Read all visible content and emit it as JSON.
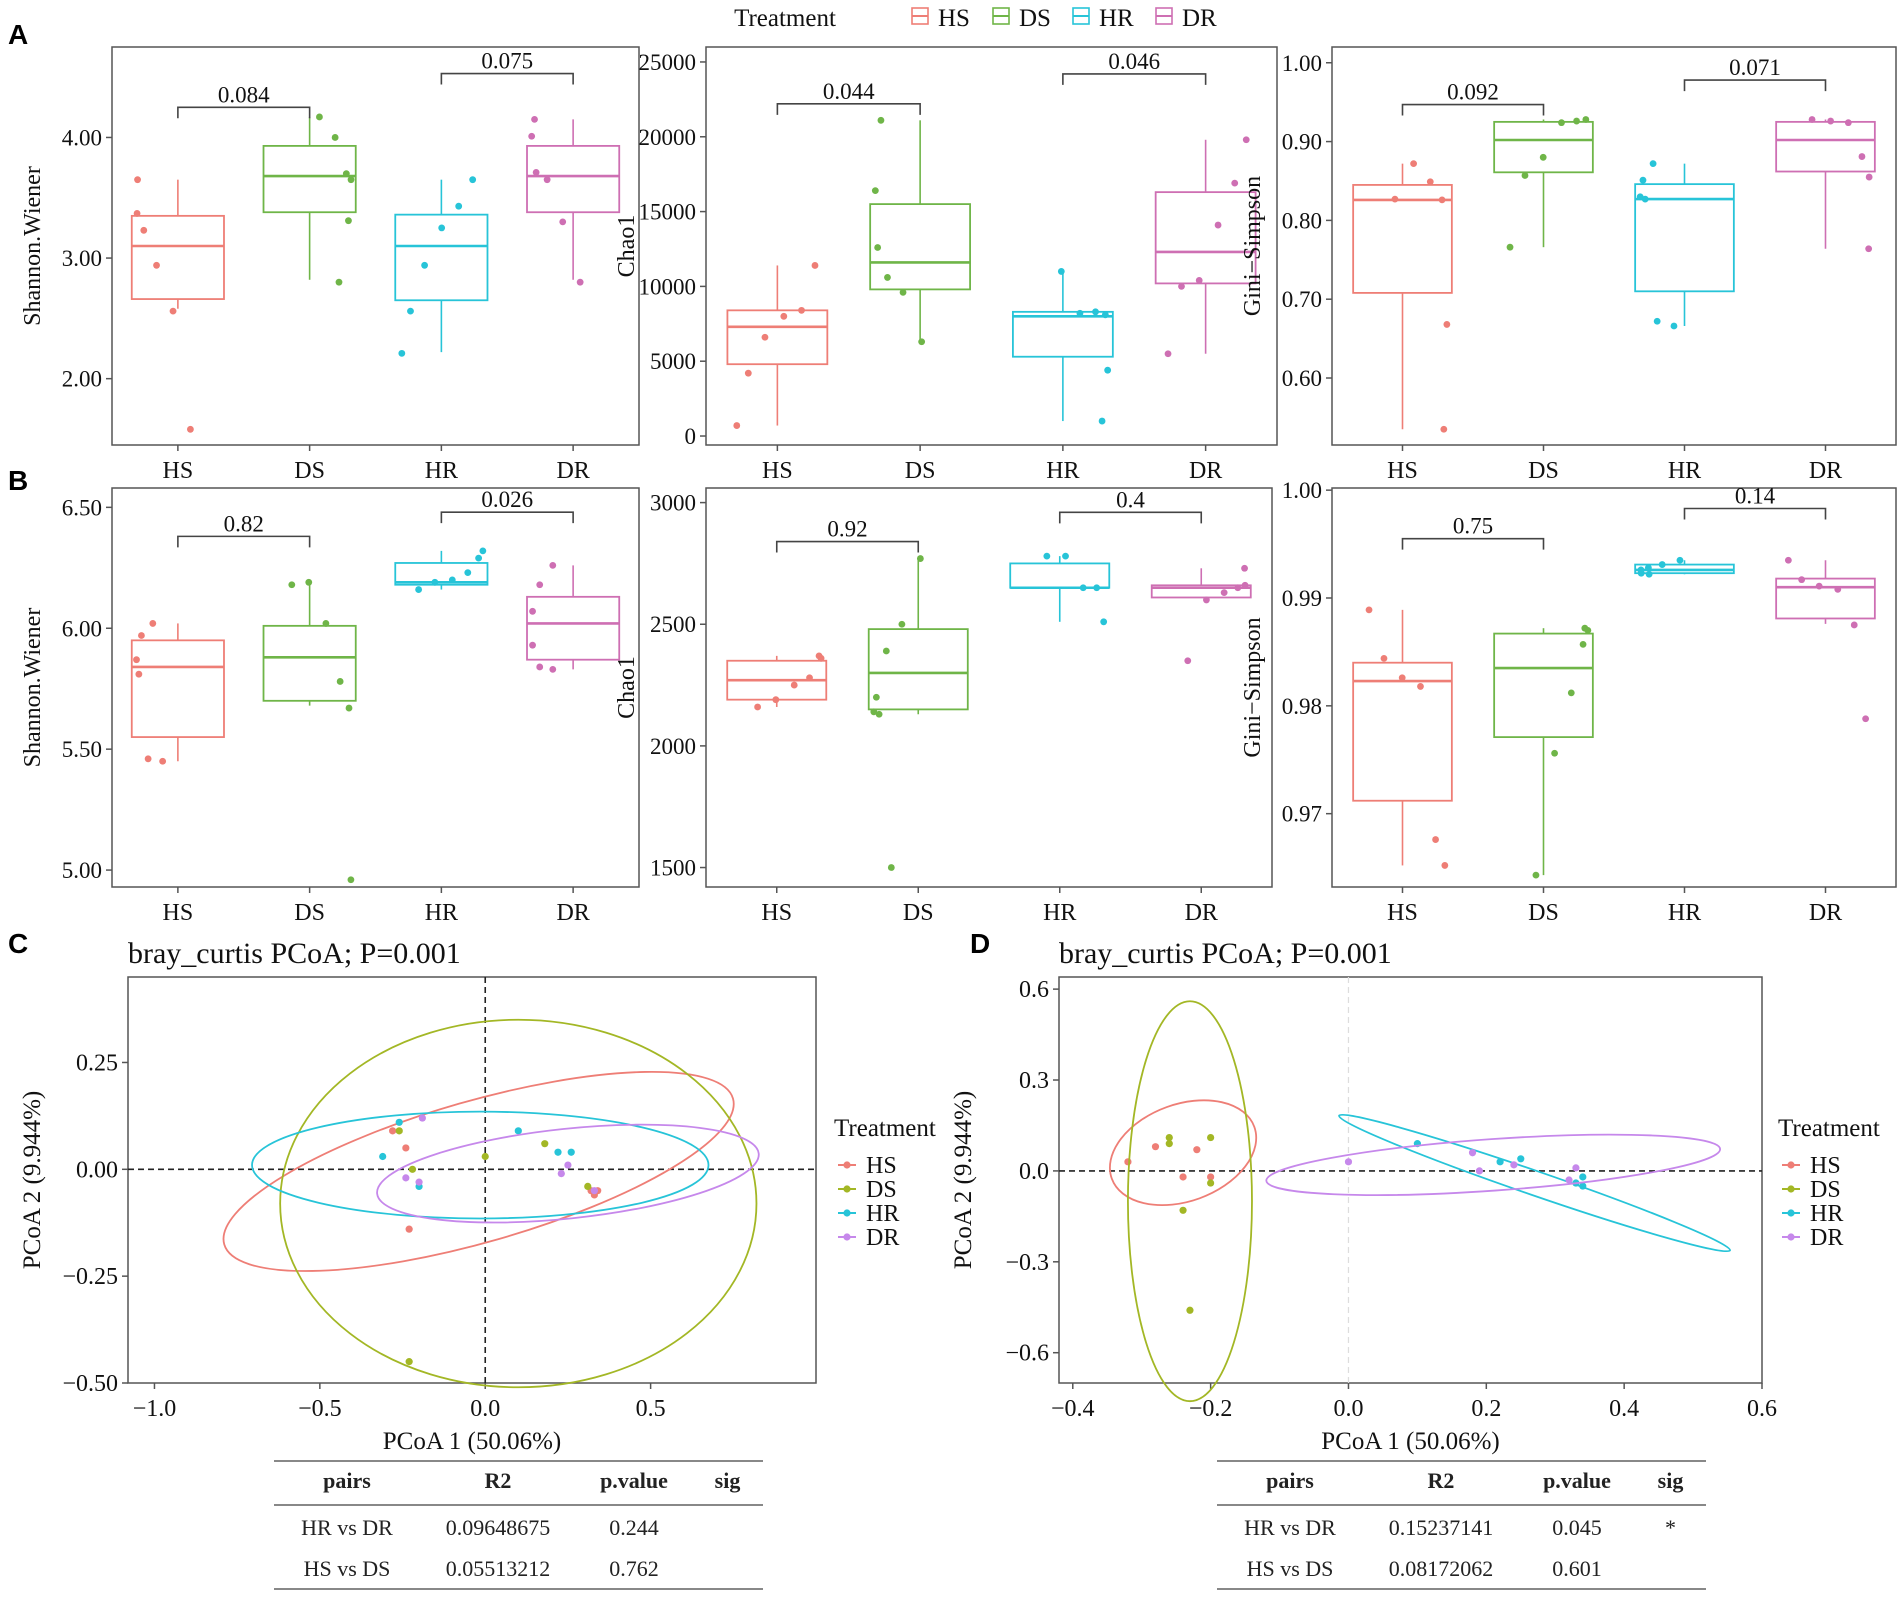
{
  "colors": {
    "HS": "#EE7E76",
    "DS": "#6FB548",
    "HR": "#27C4D8",
    "DR": "#CE6FB3",
    "DS_pcoa": "#A3B725",
    "DR_pcoa": "#C688EB",
    "frame": "#555555",
    "axis_text": "#111111"
  },
  "panel_labels": [
    "A",
    "B",
    "C",
    "D"
  ],
  "top_legend": {
    "title": "Treatment",
    "items": [
      "HS",
      "DS",
      "HR",
      "DR"
    ]
  },
  "chart_data": [
    {
      "id": "A1",
      "type": "boxplot",
      "ylabel": "Shannon.Wiener",
      "ylim": [
        1.45,
        4.75
      ],
      "yticks": [
        2.0,
        3.0,
        4.0
      ],
      "tick_labels": [
        "2.00",
        "3.00",
        "4.00"
      ],
      "categories": [
        "HS",
        "DS",
        "HR",
        "DR"
      ],
      "boxes": [
        {
          "min": 2.58,
          "q1": 2.66,
          "median": 3.1,
          "q3": 3.35,
          "max": 3.65
        },
        {
          "min": 2.82,
          "q1": 3.38,
          "median": 3.68,
          "q3": 3.93,
          "max": 4.17
        },
        {
          "min": 2.22,
          "q1": 2.65,
          "median": 3.1,
          "q3": 3.36,
          "max": 3.65
        },
        {
          "min": 2.82,
          "q1": 3.38,
          "median": 3.68,
          "q3": 3.93,
          "max": 4.15
        }
      ],
      "points": [
        [
          1.58,
          2.56,
          2.94,
          3.23,
          3.37,
          3.65
        ],
        [
          2.8,
          3.31,
          3.65,
          3.7,
          4.0,
          4.17
        ],
        [
          2.21,
          2.56,
          2.94,
          3.25,
          3.43,
          3.65
        ],
        [
          2.8,
          3.3,
          3.65,
          3.71,
          4.01,
          4.15
        ]
      ],
      "comparisons": [
        {
          "from": 0,
          "to": 1,
          "label": "0.084",
          "y": 4.25
        },
        {
          "from": 2,
          "to": 3,
          "label": "0.075",
          "y": 4.53
        }
      ]
    },
    {
      "id": "A2",
      "type": "boxplot",
      "ylabel": "Chao1",
      "ylim": [
        -600,
        26000
      ],
      "yticks": [
        0,
        5000,
        10000,
        15000,
        20000,
        25000
      ],
      "tick_labels": [
        "0",
        "5000",
        "10000",
        "15000",
        "20000",
        "25000"
      ],
      "categories": [
        "HS",
        "DS",
        "HR",
        "DR"
      ],
      "boxes": [
        {
          "min": 700,
          "q1": 4800,
          "median": 7300,
          "q3": 8400,
          "max": 11400
        },
        {
          "min": 6300,
          "q1": 9800,
          "median": 11600,
          "q3": 15500,
          "max": 21100
        },
        {
          "min": 1000,
          "q1": 5300,
          "median": 8000,
          "q3": 8300,
          "max": 11000
        },
        {
          "min": 5500,
          "q1": 10200,
          "median": 12300,
          "q3": 16300,
          "max": 19800
        }
      ],
      "points": [
        [
          700,
          4200,
          6600,
          8000,
          8400,
          11400
        ],
        [
          6300,
          9600,
          10600,
          12600,
          16400,
          21100
        ],
        [
          1000,
          4400,
          8100,
          8300,
          8200,
          11000
        ],
        [
          5500,
          10000,
          10400,
          14100,
          16900,
          19800
        ]
      ],
      "comparisons": [
        {
          "from": 0,
          "to": 1,
          "label": "0.044",
          "y": 22200
        },
        {
          "from": 2,
          "to": 3,
          "label": "0.046",
          "y": 24200
        }
      ]
    },
    {
      "id": "A3",
      "type": "boxplot",
      "ylabel": "Gini−Simpson",
      "ylim": [
        0.515,
        1.02
      ],
      "yticks": [
        0.6,
        0.7,
        0.8,
        0.9,
        1.0
      ],
      "tick_labels": [
        "0.60",
        "0.70",
        "0.80",
        "0.90",
        "1.00"
      ],
      "categories": [
        "HS",
        "DS",
        "HR",
        "DR"
      ],
      "boxes": [
        {
          "min": 0.535,
          "q1": 0.708,
          "median": 0.826,
          "q3": 0.845,
          "max": 0.872
        },
        {
          "min": 0.766,
          "q1": 0.861,
          "median": 0.902,
          "q3": 0.925,
          "max": 0.928
        },
        {
          "min": 0.666,
          "q1": 0.71,
          "median": 0.827,
          "q3": 0.846,
          "max": 0.872
        },
        {
          "min": 0.764,
          "q1": 0.862,
          "median": 0.902,
          "q3": 0.925,
          "max": 0.928
        }
      ],
      "points": [
        [
          0.535,
          0.668,
          0.826,
          0.849,
          0.872,
          0.827
        ],
        [
          0.766,
          0.857,
          0.88,
          0.924,
          0.926,
          0.928
        ],
        [
          0.666,
          0.672,
          0.827,
          0.83,
          0.851,
          0.872
        ],
        [
          0.764,
          0.855,
          0.881,
          0.924,
          0.926,
          0.928
        ]
      ],
      "comparisons": [
        {
          "from": 0,
          "to": 1,
          "label": "0.092",
          "y": 0.947
        },
        {
          "from": 2,
          "to": 3,
          "label": "0.071",
          "y": 0.978
        }
      ]
    },
    {
      "id": "B1",
      "type": "boxplot",
      "ylabel": "Shannon.Wiener",
      "ylim": [
        4.93,
        6.58
      ],
      "yticks": [
        5.0,
        5.5,
        6.0,
        6.5
      ],
      "tick_labels": [
        "5.00",
        "5.50",
        "6.00",
        "6.50"
      ],
      "categories": [
        "HS",
        "DS",
        "HR",
        "DR"
      ],
      "boxes": [
        {
          "min": 5.45,
          "q1": 5.55,
          "median": 5.84,
          "q3": 5.95,
          "max": 6.02
        },
        {
          "min": 5.68,
          "q1": 5.7,
          "median": 5.88,
          "q3": 6.01,
          "max": 6.19
        },
        {
          "min": 6.16,
          "q1": 6.18,
          "median": 6.19,
          "q3": 6.27,
          "max": 6.32
        },
        {
          "min": 5.83,
          "q1": 5.87,
          "median": 6.02,
          "q3": 6.13,
          "max": 6.26
        }
      ],
      "points": [
        [
          5.45,
          5.46,
          5.81,
          5.87,
          5.97,
          6.02
        ],
        [
          4.96,
          5.67,
          5.78,
          6.02,
          6.19,
          6.18
        ],
        [
          6.16,
          6.19,
          6.2,
          6.23,
          6.29,
          6.32
        ],
        [
          5.83,
          5.84,
          5.93,
          6.07,
          6.18,
          6.26
        ]
      ],
      "comparisons": [
        {
          "from": 0,
          "to": 1,
          "label": "0.82",
          "y": 6.38
        },
        {
          "from": 2,
          "to": 3,
          "label": "0.026",
          "y": 6.48
        }
      ]
    },
    {
      "id": "B2",
      "type": "boxplot",
      "ylabel": "Chao1",
      "ylim": [
        1420,
        3060
      ],
      "yticks": [
        1500,
        2000,
        2500,
        3000
      ],
      "tick_labels": [
        "1500",
        "2000",
        "2500",
        "3000"
      ],
      "categories": [
        "HS",
        "DS",
        "HR",
        "DR"
      ],
      "boxes": [
        {
          "min": 2160,
          "q1": 2190,
          "median": 2270,
          "q3": 2350,
          "max": 2370
        },
        {
          "min": 2130,
          "q1": 2150,
          "median": 2300,
          "q3": 2480,
          "max": 2770
        },
        {
          "min": 2510,
          "q1": 2650,
          "median": 2650,
          "q3": 2750,
          "max": 2780
        },
        {
          "min": 2610,
          "q1": 2610,
          "median": 2650,
          "q3": 2660,
          "max": 2730
        }
      ],
      "points": [
        [
          2160,
          2190,
          2250,
          2280,
          2370,
          2360
        ],
        [
          1500,
          2130,
          2140,
          2200,
          2390,
          2500,
          2770
        ],
        [
          2510,
          2650,
          2650,
          2780,
          2780
        ],
        [
          2350,
          2600,
          2630,
          2650,
          2660,
          2730
        ]
      ],
      "comparisons": [
        {
          "from": 0,
          "to": 1,
          "label": "0.92",
          "y": 2840
        },
        {
          "from": 2,
          "to": 3,
          "label": "0.4",
          "y": 2960
        }
      ]
    },
    {
      "id": "B3",
      "type": "boxplot",
      "ylabel": "Gini−Simpson",
      "ylim": [
        0.9632,
        1.0002
      ],
      "yticks": [
        0.97,
        0.98,
        0.99,
        1.0
      ],
      "tick_labels": [
        "0.97",
        "0.98",
        "0.99",
        "1.00"
      ],
      "categories": [
        "HS",
        "DS",
        "HR",
        "DR"
      ],
      "boxes": [
        {
          "min": 0.9652,
          "q1": 0.9712,
          "median": 0.9823,
          "q3": 0.984,
          "max": 0.9889
        },
        {
          "min": 0.9643,
          "q1": 0.9771,
          "median": 0.9835,
          "q3": 0.9867,
          "max": 0.9872
        },
        {
          "min": 0.9922,
          "q1": 0.9923,
          "median": 0.9926,
          "q3": 0.9931,
          "max": 0.9935
        },
        {
          "min": 0.9876,
          "q1": 0.9881,
          "median": 0.991,
          "q3": 0.9918,
          "max": 0.9935
        }
      ],
      "points": [
        [
          0.9652,
          0.9676,
          0.9818,
          0.9826,
          0.9844,
          0.9889
        ],
        [
          0.9643,
          0.9756,
          0.9812,
          0.9857,
          0.987,
          0.9872
        ],
        [
          0.9922,
          0.9923,
          0.9926,
          0.9928,
          0.9931,
          0.9935
        ],
        [
          0.9788,
          0.9875,
          0.9908,
          0.9911,
          0.9917,
          0.9935
        ]
      ],
      "comparisons": [
        {
          "from": 0,
          "to": 1,
          "label": "0.75",
          "y": 0.9955
        },
        {
          "from": 2,
          "to": 3,
          "label": "0.14",
          "y": 0.9983
        }
      ]
    },
    {
      "id": "C",
      "type": "scatter",
      "title": "bray_curtis PCoA; P=0.001",
      "xlabel": "PCoA 1 (50.06%)",
      "ylabel": "PCoA 2 (9.944%)",
      "xlim": [
        -1.08,
        1.0
      ],
      "ylim": [
        -0.5,
        0.45
      ],
      "xticks": [
        -1.0,
        -0.5,
        0.0,
        0.5
      ],
      "xtick_labels": [
        "−1.0",
        "−0.5",
        "0.0",
        "0.5"
      ],
      "yticks": [
        -0.5,
        -0.25,
        0.0,
        0.25
      ],
      "ytick_labels": [
        "−0.50",
        "−0.25",
        "0.00",
        "0.25"
      ],
      "legend": {
        "title": "Treatment",
        "items": [
          "HS",
          "DS",
          "HR",
          "DR"
        ]
      },
      "series": [
        {
          "name": "HS",
          "points": [
            [
              -0.28,
              0.09
            ],
            [
              -0.24,
              0.05
            ],
            [
              -0.23,
              -0.14
            ],
            [
              0.32,
              -0.05
            ],
            [
              0.33,
              -0.06
            ],
            [
              0.34,
              -0.05
            ]
          ],
          "ellipse": {
            "cx": -0.02,
            "cy": -0.005,
            "rx": 0.8,
            "ry": 0.165,
            "angle_deg": -16
          }
        },
        {
          "name": "DS",
          "points": [
            [
              -0.26,
              0.09
            ],
            [
              -0.22,
              0.0
            ],
            [
              -0.23,
              -0.45
            ],
            [
              0.0,
              0.03
            ],
            [
              0.18,
              0.06
            ],
            [
              0.31,
              -0.04
            ]
          ],
          "ellipse": {
            "cx": 0.1,
            "cy": -0.08,
            "rx": 0.72,
            "ry": 0.43,
            "angle_deg": 0
          }
        },
        {
          "name": "HR",
          "points": [
            [
              -0.31,
              0.03
            ],
            [
              -0.26,
              0.11
            ],
            [
              -0.2,
              -0.04
            ],
            [
              0.1,
              0.09
            ],
            [
              0.22,
              0.04
            ],
            [
              0.26,
              0.04
            ]
          ],
          "ellipse": {
            "cx": -0.015,
            "cy": 0.01,
            "rx": 0.69,
            "ry": 0.125,
            "angle_deg": 0
          }
        },
        {
          "name": "DR",
          "points": [
            [
              -0.19,
              0.12
            ],
            [
              -0.24,
              -0.02
            ],
            [
              -0.2,
              -0.03
            ],
            [
              0.23,
              -0.01
            ],
            [
              0.25,
              0.01
            ],
            [
              0.33,
              -0.05
            ]
          ],
          "ellipse": {
            "cx": 0.25,
            "cy": -0.01,
            "rx": 0.58,
            "ry": 0.105,
            "angle_deg": -6
          }
        }
      ],
      "stats_table": {
        "headers": [
          "pairs",
          "R2",
          "p.value",
          "sig"
        ],
        "rows": [
          [
            "HR vs DR",
            "0.09648675",
            "0.244",
            ""
          ],
          [
            "HS vs DS",
            "0.05513212",
            "0.762",
            ""
          ]
        ]
      }
    },
    {
      "id": "D",
      "type": "scatter",
      "title": "bray_curtis PCoA; P=0.001",
      "xlabel": "PCoA 1 (50.06%)",
      "ylabel": "PCoA 2 (9.944%)",
      "xlim": [
        -0.42,
        0.6
      ],
      "ylim": [
        -0.7,
        0.64
      ],
      "xticks": [
        -0.4,
        -0.2,
        0.0,
        0.2,
        0.4,
        0.6
      ],
      "xtick_labels": [
        "−0.4",
        "−0.2",
        "0.0",
        "0.2",
        "0.4",
        "0.6"
      ],
      "yticks": [
        -0.6,
        -0.3,
        0.0,
        0.3,
        0.6
      ],
      "ytick_labels": [
        "−0.6",
        "−0.3",
        "0.0",
        "0.3",
        "0.6"
      ],
      "legend": {
        "title": "Treatment",
        "items": [
          "HS",
          "DS",
          "HR",
          "DR"
        ]
      },
      "series": [
        {
          "name": "HS",
          "points": [
            [
              -0.32,
              0.03
            ],
            [
              -0.28,
              0.08
            ],
            [
              -0.24,
              -0.02
            ],
            [
              -0.22,
              0.07
            ],
            [
              -0.2,
              -0.02
            ]
          ],
          "ellipse": {
            "cx": -0.24,
            "cy": 0.06,
            "rx": 0.11,
            "ry": 0.16,
            "angle_deg": -20
          }
        },
        {
          "name": "DS",
          "points": [
            [
              -0.26,
              0.11
            ],
            [
              -0.26,
              0.09
            ],
            [
              -0.24,
              -0.13
            ],
            [
              -0.23,
              -0.46
            ],
            [
              -0.2,
              0.11
            ],
            [
              -0.2,
              -0.04
            ]
          ],
          "ellipse": {
            "cx": -0.23,
            "cy": -0.1,
            "rx": 0.09,
            "ry": 0.66,
            "angle_deg": 0
          }
        },
        {
          "name": "HR",
          "points": [
            [
              0.1,
              0.09
            ],
            [
              0.22,
              0.03
            ],
            [
              0.25,
              0.04
            ],
            [
              0.33,
              -0.04
            ],
            [
              0.34,
              -0.02
            ],
            [
              0.34,
              -0.05
            ]
          ],
          "ellipse": {
            "cx": 0.27,
            "cy": -0.04,
            "rx": 0.3,
            "ry": 0.04,
            "angle_deg": 19
          }
        },
        {
          "name": "DR",
          "points": [
            [
              0.0,
              0.03
            ],
            [
              0.18,
              0.06
            ],
            [
              0.19,
              0.0
            ],
            [
              0.24,
              0.02
            ],
            [
              0.32,
              -0.03
            ],
            [
              0.33,
              0.01
            ]
          ],
          "ellipse": {
            "cx": 0.21,
            "cy": 0.02,
            "rx": 0.33,
            "ry": 0.085,
            "angle_deg": -4
          }
        }
      ],
      "stats_table": {
        "headers": [
          "pairs",
          "R2",
          "p.value",
          "sig"
        ],
        "rows": [
          [
            "HR vs DR",
            "0.15237141",
            "0.045",
            "*"
          ],
          [
            "HS vs DS",
            "0.08172062",
            "0.601",
            ""
          ]
        ]
      }
    }
  ]
}
